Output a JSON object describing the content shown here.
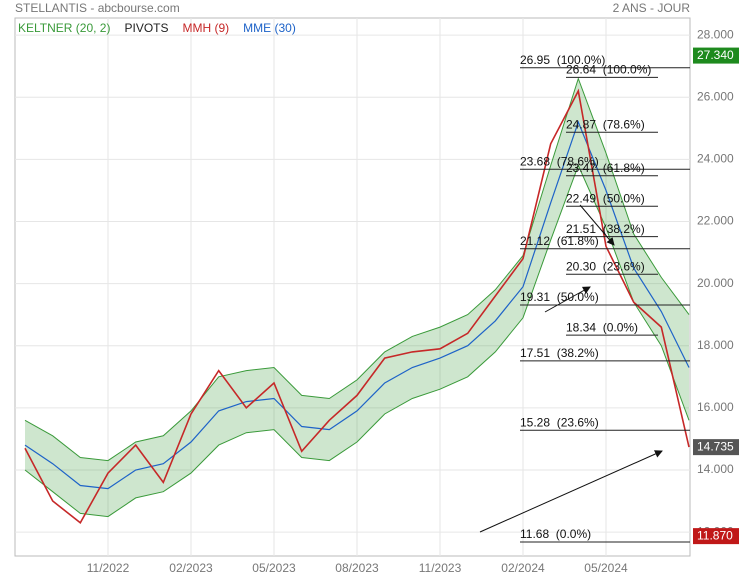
{
  "chart_data": {
    "type": "line",
    "title": "STELLANTIS - abcbourse.com",
    "subtitle": "2 ANS - JOUR",
    "x": [
      "2022-08",
      "2022-09",
      "2022-10",
      "2022-11",
      "2022-12",
      "2023-01",
      "2023-02",
      "2023-03",
      "2023-04",
      "2023-05",
      "2023-06",
      "2023-07",
      "2023-08",
      "2023-09",
      "2023-10",
      "2023-11",
      "2023-12",
      "2024-01",
      "2024-02",
      "2024-03",
      "2024-04",
      "2024-05",
      "2024-06",
      "2024-07",
      "2024-08"
    ],
    "xlim": [
      "2022-08",
      "2024-08"
    ],
    "xticks": [
      {
        "value": "2022-11",
        "label": "11/2022"
      },
      {
        "value": "2023-02",
        "label": "02/2023"
      },
      {
        "value": "2023-05",
        "label": "05/2023"
      },
      {
        "value": "2023-08",
        "label": "08/2023"
      },
      {
        "value": "2023-11",
        "label": "11/2023"
      },
      {
        "value": "2024-02",
        "label": "02/2024"
      },
      {
        "value": "2024-05",
        "label": "05/2024"
      }
    ],
    "ylim": [
      11.23,
      28.55
    ],
    "yticks": [
      {
        "value": 12,
        "label": "12.000"
      },
      {
        "value": 14,
        "label": "14.000"
      },
      {
        "value": 16,
        "label": "16.000"
      },
      {
        "value": 18,
        "label": "18.000"
      },
      {
        "value": 20,
        "label": "20.000"
      },
      {
        "value": 22,
        "label": "22.000"
      },
      {
        "value": 24,
        "label": "24.000"
      },
      {
        "value": 26,
        "label": "26.000"
      },
      {
        "value": 28,
        "label": "28.000"
      }
    ],
    "grid": true,
    "series": [
      {
        "name": "KELTNER (20, 2)",
        "color": "#3a9a3a",
        "upper": [
          15.6,
          15.1,
          14.4,
          14.3,
          14.9,
          15.1,
          15.9,
          17.0,
          17.2,
          17.3,
          16.4,
          16.3,
          16.9,
          17.8,
          18.3,
          18.6,
          19.0,
          19.8,
          20.9,
          23.8,
          26.6,
          24.2,
          21.6,
          20.2,
          19.0
        ],
        "lower": [
          14.0,
          13.3,
          12.6,
          12.5,
          13.1,
          13.3,
          13.9,
          14.8,
          15.2,
          15.3,
          14.4,
          14.3,
          14.9,
          15.8,
          16.3,
          16.6,
          17.0,
          17.8,
          18.9,
          21.4,
          23.8,
          21.8,
          19.4,
          18.0,
          15.6
        ]
      },
      {
        "name": "PIVOTS",
        "color": "#222222",
        "levels": [
          [
            {
              "value": 26.95,
              "label": "26.95  (100.0%)"
            },
            {
              "value": 23.68,
              "label": "23.68  (78.6%)"
            },
            {
              "value": 21.12,
              "label": "21.12  (61.8%)"
            },
            {
              "value": 19.31,
              "label": "19.31  (50.0%)"
            },
            {
              "value": 17.51,
              "label": "17.51  (38.2%)"
            },
            {
              "value": 15.28,
              "label": "15.28  (23.6%)"
            },
            {
              "value": 11.68,
              "label": "11.68  (0.0%)"
            }
          ],
          [
            {
              "value": 26.64,
              "label": "26.64  (100.0%)"
            },
            {
              "value": 24.87,
              "label": "24.87  (78.6%)"
            },
            {
              "value": 23.47,
              "label": "23.47  (61.8%)"
            },
            {
              "value": 22.49,
              "label": "22.49  (50.0%)"
            },
            {
              "value": 21.51,
              "label": "21.51  (38.2%)"
            },
            {
              "value": 20.3,
              "label": "20.30  (23.6%)"
            },
            {
              "value": 18.34,
              "label": "18.34  (0.0%)"
            }
          ]
        ]
      },
      {
        "name": "MMH (9)",
        "color": "#c62828",
        "values": [
          14.7,
          13.0,
          12.3,
          13.9,
          14.8,
          13.6,
          15.8,
          17.2,
          16.0,
          16.8,
          14.6,
          15.6,
          16.4,
          17.6,
          17.8,
          17.9,
          18.4,
          19.6,
          20.8,
          24.5,
          26.2,
          21.2,
          19.4,
          18.6,
          14.735
        ]
      },
      {
        "name": "MME (30)",
        "color": "#1e63c8",
        "values": [
          14.8,
          14.2,
          13.5,
          13.4,
          14.0,
          14.2,
          14.9,
          15.9,
          16.2,
          16.3,
          15.4,
          15.3,
          15.9,
          16.8,
          17.3,
          17.6,
          18.0,
          18.8,
          19.9,
          22.6,
          25.2,
          23.0,
          20.5,
          19.1,
          17.3
        ]
      }
    ],
    "price_tags": [
      {
        "value": 27.34,
        "label": "27.340",
        "color": "#1e8a1e"
      },
      {
        "value": 14.735,
        "label": "14.735",
        "color": "#555555"
      },
      {
        "value": 11.87,
        "label": "11.870",
        "color": "#c01818"
      }
    ]
  }
}
